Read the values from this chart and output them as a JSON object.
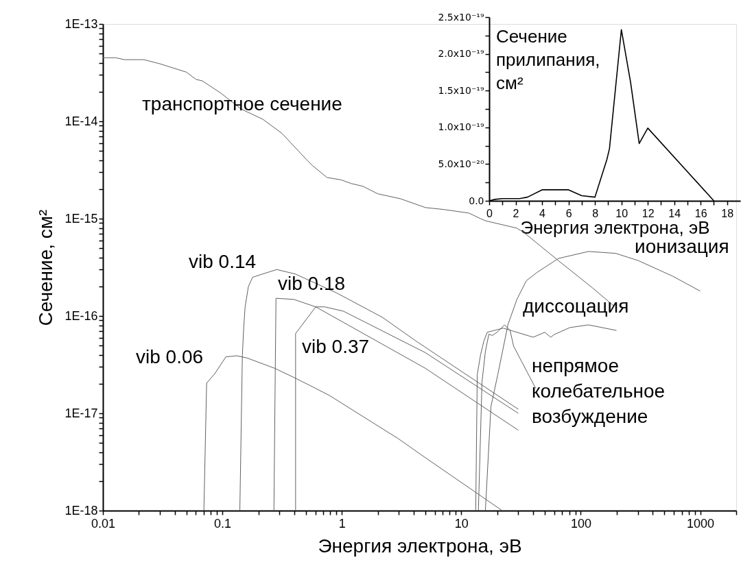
{
  "chart_data": [
    {
      "type": "line",
      "xlabel": "Энергия электрона, эВ",
      "ylabel": "Сечение, см²",
      "log": "xy",
      "xlim": [
        0.01,
        2000
      ],
      "ylim": [
        1e-18,
        1e-13
      ],
      "xticks": [
        0.01,
        {
          "value": 0.02,
          "label": null
        },
        {
          "value": 0.03,
          "label": null
        },
        {
          "value": 0.04,
          "label": null
        },
        {
          "value": 0.05,
          "label": null
        },
        {
          "value": 0.06,
          "label": null
        },
        {
          "value": 0.07,
          "label": null
        },
        {
          "value": 0.08,
          "label": null
        },
        {
          "value": 0.09,
          "label": null
        },
        0.1,
        {
          "value": 0.2,
          "label": null
        },
        {
          "value": 0.3,
          "label": null
        },
        {
          "value": 0.4,
          "label": null
        },
        {
          "value": 0.5,
          "label": null
        },
        {
          "value": 0.6,
          "label": null
        },
        {
          "value": 0.7,
          "label": null
        },
        {
          "value": 0.8,
          "label": null
        },
        {
          "value": 0.9,
          "label": null
        },
        1,
        {
          "value": 2,
          "label": null
        },
        {
          "value": 3,
          "label": null
        },
        {
          "value": 4,
          "label": null
        },
        {
          "value": 5,
          "label": null
        },
        {
          "value": 6,
          "label": null
        },
        {
          "value": 7,
          "label": null
        },
        {
          "value": 8,
          "label": null
        },
        {
          "value": 9,
          "label": null
        },
        10,
        {
          "value": 20,
          "label": null
        },
        {
          "value": 30,
          "label": null
        },
        {
          "value": 40,
          "label": null
        },
        {
          "value": 50,
          "label": null
        },
        {
          "value": 60,
          "label": null
        },
        {
          "value": 70,
          "label": null
        },
        {
          "value": 80,
          "label": null
        },
        {
          "value": 90,
          "label": null
        },
        100,
        {
          "value": 200,
          "label": null
        },
        {
          "value": 300,
          "label": null
        },
        {
          "value": 400,
          "label": null
        },
        {
          "value": 500,
          "label": null
        },
        {
          "value": 600,
          "label": null
        },
        {
          "value": 700,
          "label": null
        },
        {
          "value": 800,
          "label": null
        },
        {
          "value": 900,
          "label": null
        },
        1000,
        {
          "value": 2000,
          "label": null
        }
      ],
      "yticks": [
        {
          "value": 1e-18,
          "label": "1E-18"
        },
        {
          "value": 2e-18,
          "label": null
        },
        {
          "value": 3e-18,
          "label": null
        },
        {
          "value": 4e-18,
          "label": null
        },
        {
          "value": 5e-18,
          "label": null
        },
        {
          "value": 6e-18,
          "label": null
        },
        {
          "value": 7e-18,
          "label": null
        },
        {
          "value": 8e-18,
          "label": null
        },
        {
          "value": 9e-18,
          "label": null
        },
        {
          "value": 1e-17,
          "label": "1E-17"
        },
        {
          "value": 2e-17,
          "label": null
        },
        {
          "value": 3e-17,
          "label": null
        },
        {
          "value": 4e-17,
          "label": null
        },
        {
          "value": 5e-17,
          "label": null
        },
        {
          "value": 6e-17,
          "label": null
        },
        {
          "value": 7e-17,
          "label": null
        },
        {
          "value": 8e-17,
          "label": null
        },
        {
          "value": 9e-17,
          "label": null
        },
        {
          "value": 1e-16,
          "label": "1E-16"
        },
        {
          "value": 2e-16,
          "label": null
        },
        {
          "value": 3e-16,
          "label": null
        },
        {
          "value": 4e-16,
          "label": null
        },
        {
          "value": 5e-16,
          "label": null
        },
        {
          "value": 6e-16,
          "label": null
        },
        {
          "value": 7e-16,
          "label": null
        },
        {
          "value": 8e-16,
          "label": null
        },
        {
          "value": 9e-16,
          "label": null
        },
        {
          "value": 1e-15,
          "label": "1E-15"
        },
        {
          "value": 2e-15,
          "label": null
        },
        {
          "value": 3e-15,
          "label": null
        },
        {
          "value": 4e-15,
          "label": null
        },
        {
          "value": 5e-15,
          "label": null
        },
        {
          "value": 6e-15,
          "label": null
        },
        {
          "value": 7e-15,
          "label": null
        },
        {
          "value": 8e-15,
          "label": null
        },
        {
          "value": 9e-15,
          "label": null
        },
        {
          "value": 1e-14,
          "label": "1E-14"
        },
        {
          "value": 2e-14,
          "label": null
        },
        {
          "value": 3e-14,
          "label": null
        },
        {
          "value": 4e-14,
          "label": null
        },
        {
          "value": 5e-14,
          "label": null
        },
        {
          "value": 6e-14,
          "label": null
        },
        {
          "value": 7e-14,
          "label": null
        },
        {
          "value": 8e-14,
          "label": null
        },
        {
          "value": 9e-14,
          "label": null
        },
        {
          "value": 1e-13,
          "label": "1E-13"
        }
      ],
      "series": [
        {
          "color": "#606060",
          "x": [
            0.01,
            0.0128,
            0.0151,
            0.022,
            0.03,
            0.05,
            0.06,
            0.068,
            0.097,
            0.143,
            0.218,
            0.316,
            0.51,
            0.57,
            0.75,
            0.99,
            1.19,
            1.5,
            2.0,
            3.1,
            5.0,
            7.2,
            11.6,
            14.5,
            16,
            29,
            33,
            65,
            125,
            190
          ],
          "values": [
            4.5e-14,
            4.5e-14,
            4.3e-14,
            4.3e-14,
            3.9e-14,
            3.2e-14,
            2.7e-14,
            2.6e-14,
            1.95e-14,
            1.34e-14,
            1.05e-14,
            7.5e-15,
            4e-15,
            3.5e-15,
            2.65e-15,
            2.5e-15,
            2.3e-15,
            2.15e-15,
            1.8e-15,
            1.6e-15,
            1.3e-15,
            1.24e-15,
            1.14e-15,
            1e-15,
            9.5e-16,
            8e-16,
            7.3e-16,
            3.7e-16,
            1.95e-16,
            1.26e-16
          ]
        },
        {
          "color": "#606060",
          "x": [
            15.9,
            17.7,
            20.2,
            24.6,
            29.2,
            35,
            43,
            65,
            116,
            196,
            304,
            589,
            1000
          ],
          "values": [
            1e-18,
            1.17e-17,
            2.5e-17,
            8.2e-17,
            1.48e-16,
            2.3e-16,
            2.8e-16,
            3.9e-16,
            4.6e-16,
            4.4e-16,
            3.7e-16,
            2.56e-16,
            1.8e-16
          ]
        },
        {
          "color": "#606060",
          "x": [
            13.2,
            13.6,
            14.5,
            15.5,
            16.5,
            18.9,
            22.4,
            27,
            40,
            50,
            56,
            60,
            81,
            116,
            199
          ],
          "values": [
            1e-18,
            2.5e-17,
            4e-17,
            5.6e-17,
            6.8e-17,
            7.1e-17,
            7.5e-17,
            7e-17,
            6.05e-17,
            6.8e-17,
            6.05e-17,
            6.45e-17,
            7.6e-17,
            8.1e-17,
            7.1e-17
          ]
        },
        {
          "color": "#606060",
          "x": [
            13.9,
            14.9,
            15.9,
            17,
            18.2,
            20.2,
            23,
            25.6,
            27.4,
            32,
            42
          ],
          "values": [
            1e-18,
            2.1e-17,
            4.3e-17,
            6.5e-17,
            6.3e-17,
            6.9e-17,
            8.1e-17,
            7.1e-17,
            4.9e-17,
            3.4e-17,
            1.8e-17
          ]
        },
        {
          "color": "#606060",
          "x": [
            0.07,
            0.0738,
            0.0865,
            0.107,
            0.132,
            0.161,
            0.274,
            0.407,
            0.58,
            0.79,
            2.96,
            5.0,
            22
          ],
          "values": [
            1e-18,
            2.04e-17,
            2.56e-17,
            3.8e-17,
            3.9e-17,
            3.7e-17,
            2.9e-17,
            2.3e-17,
            1.85e-17,
            1.52e-17,
            5.5e-18,
            3.5e-18,
            1e-18
          ]
        },
        {
          "color": "#606060",
          "x": [
            0.14,
            0.147,
            0.151,
            0.155,
            0.165,
            0.179,
            0.285,
            0.407,
            0.9,
            2.18,
            4.2,
            30
          ],
          "values": [
            1e-18,
            4e-17,
            7.7e-17,
            1.24e-16,
            2e-16,
            2.5e-16,
            3e-16,
            2.7e-16,
            1.73e-16,
            9.7e-17,
            5.5e-17,
            1.1e-17
          ]
        },
        {
          "color": "#606060",
          "x": [
            0.27,
            0.281,
            0.396,
            0.605,
            5.0,
            30
          ],
          "values": [
            1e-18,
            1.52e-16,
            1.48e-16,
            1.24e-16,
            2.9e-17,
            6.7e-18
          ]
        },
        {
          "color": "#606060",
          "x": [
            0.41,
            0.41,
            0.605,
            0.72,
            1.03,
            5.0,
            30
          ],
          "values": [
            1e-18,
            6.6e-17,
            1.24e-16,
            1.24e-16,
            1.12e-16,
            4.2e-17,
            1e-17
          ]
        }
      ],
      "annotations": [
        "транспортное сечение",
        "vib 0.14",
        "vib 0.18",
        "vib 0.37",
        "vib 0.06",
        "ионизация",
        "диссоцация",
        "непрямое\nколебательное\nвозбуждение"
      ]
    },
    {
      "type": "line",
      "xlabel": "Энергия электрона, эВ",
      "ylabel": "Сечение\nприлипания,\nсм²",
      "xlim": [
        0,
        19
      ],
      "ylim": [
        0,
        2.5e-19
      ],
      "xticks": [
        0,
        {
          "value": 1,
          "label": null
        },
        2,
        {
          "value": 3,
          "label": null
        },
        4,
        {
          "value": 5,
          "label": null
        },
        6,
        {
          "value": 7,
          "label": null
        },
        8,
        {
          "value": 9,
          "label": null
        },
        10,
        {
          "value": 11,
          "label": null
        },
        12,
        {
          "value": 13,
          "label": null
        },
        14,
        {
          "value": 15,
          "label": null
        },
        16,
        {
          "value": 17,
          "label": null
        },
        18
      ],
      "yticks": [
        {
          "value": 0,
          "label": "0.0"
        },
        {
          "value": 2.5e-20,
          "label": null
        },
        {
          "value": 5e-20,
          "label": "5.0x10⁻²⁰"
        },
        {
          "value": 7.5e-20,
          "label": null
        },
        {
          "value": 1e-19,
          "label": "1.0x10⁻¹⁹"
        },
        {
          "value": 1.25e-19,
          "label": null
        },
        {
          "value": 1.5e-19,
          "label": "1.5x10⁻¹⁹"
        },
        {
          "value": 1.75e-19,
          "label": null
        },
        {
          "value": 2e-19,
          "label": "2.0x10⁻¹⁹"
        },
        {
          "value": 2.25e-19,
          "label": null
        },
        {
          "value": 2.5e-19,
          "label": "2.5x10⁻¹⁹"
        }
      ],
      "series": [
        {
          "color": "#000000",
          "x": [
            0,
            0.43,
            1.0,
            2.3,
            2.9,
            4.0,
            6.0,
            7.0,
            8.0,
            8.9,
            9.1,
            10.0,
            10.7,
            11.35,
            12.0,
            17.0
          ],
          "values": [
            0,
            2e-21,
            3e-21,
            3e-21,
            5e-21,
            1.5e-20,
            1.5e-20,
            7e-21,
            5e-21,
            5.6e-20,
            7.1e-20,
            2.33e-19,
            1.61e-19,
            7.8e-20,
            9.9e-20,
            0
          ]
        }
      ]
    }
  ]
}
